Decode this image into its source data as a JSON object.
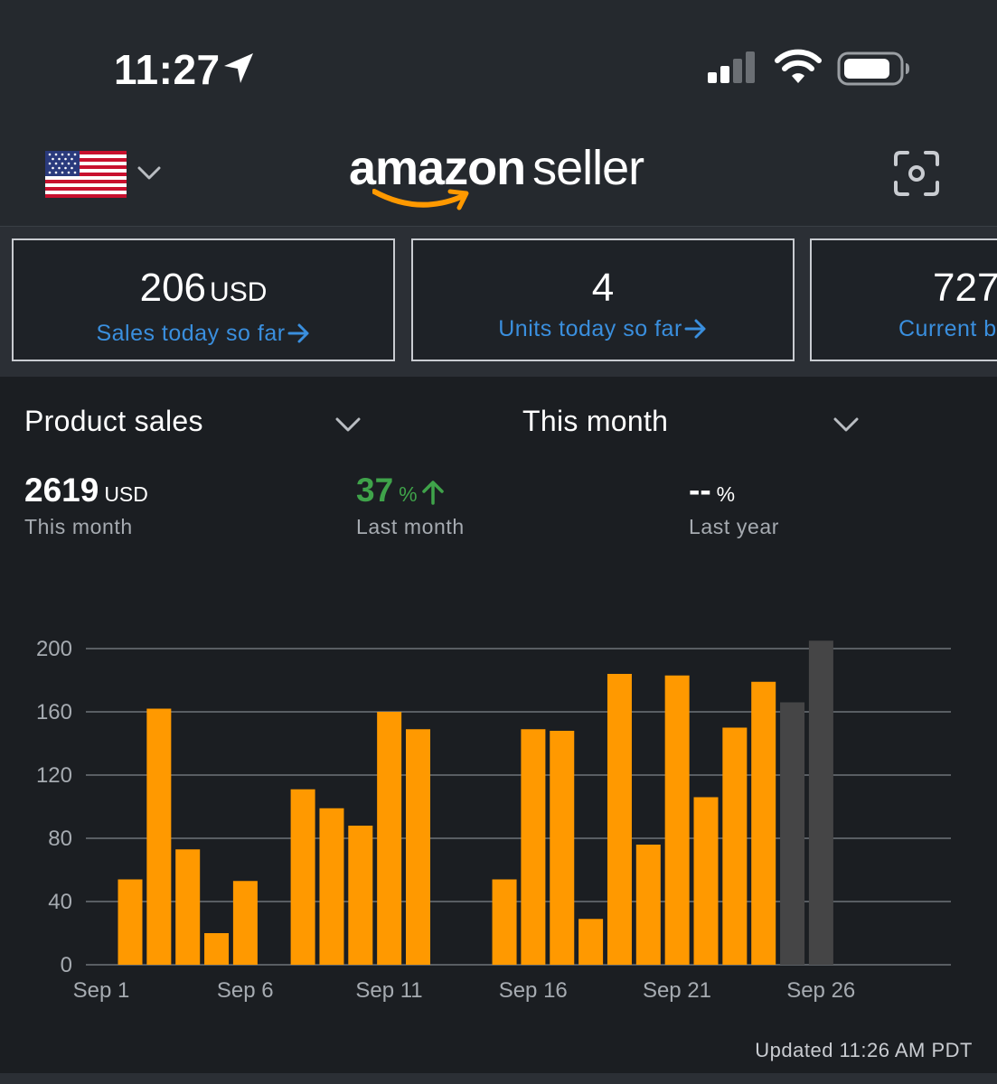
{
  "status_bar": {
    "time": "11:27"
  },
  "header": {
    "logo_brand": "amazon",
    "logo_suffix": "seller",
    "colors": {
      "smile": "#ff9900"
    }
  },
  "kpis": [
    {
      "value": "206",
      "unit": "USD",
      "label": "Sales today so far"
    },
    {
      "value": "4",
      "unit": "",
      "label": "Units today so far"
    },
    {
      "value": "727",
      "unit": "",
      "label": "Current b"
    }
  ],
  "selectors": {
    "metric": "Product sales",
    "period": "This month"
  },
  "stats": [
    {
      "value": "2619",
      "unit": "USD",
      "label": "This month"
    },
    {
      "value": "37",
      "unit": "%",
      "label": "Last month"
    },
    {
      "value": "--",
      "unit": "%",
      "label": "Last year"
    }
  ],
  "chart_data": {
    "type": "bar",
    "ylim": [
      0,
      200
    ],
    "yticks": [
      0,
      40,
      80,
      120,
      160,
      200
    ],
    "xtick_labels": [
      "Sep 1",
      "Sep 6",
      "Sep 11",
      "Sep 16",
      "Sep 21",
      "Sep 26"
    ],
    "categories": [
      "Sep 1",
      "Sep 2",
      "Sep 3",
      "Sep 4",
      "Sep 5",
      "Sep 6",
      "Sep 7",
      "Sep 8",
      "Sep 9",
      "Sep 10",
      "Sep 11",
      "Sep 12",
      "Sep 13",
      "Sep 14",
      "Sep 15",
      "Sep 16",
      "Sep 17",
      "Sep 18",
      "Sep 19",
      "Sep 20",
      "Sep 21",
      "Sep 22",
      "Sep 23",
      "Sep 24",
      "Sep 25",
      "Sep 26"
    ],
    "values": [
      54,
      162,
      73,
      20,
      53,
      0,
      111,
      99,
      88,
      160,
      149,
      0,
      0,
      54,
      149,
      148,
      29,
      184,
      76,
      183,
      106,
      150,
      179,
      166,
      205,
      null
    ],
    "highlight_gray_from_index": 23,
    "colors": {
      "bar": "#ff9900",
      "bar_recent": "#454546",
      "grid": "#6e7379",
      "axis_text": "#a6abb1"
    },
    "grid": true
  },
  "footer": {
    "updated": "Updated 11:26 AM PDT"
  }
}
